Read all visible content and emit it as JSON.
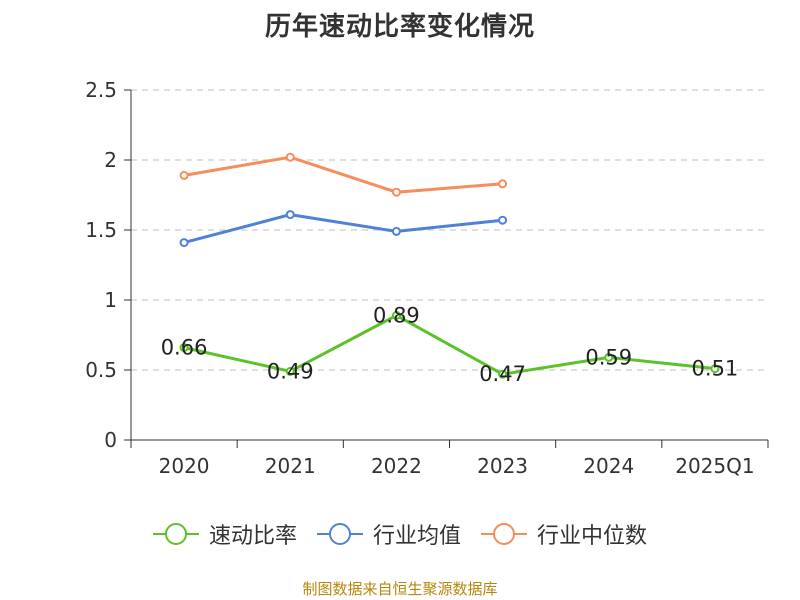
{
  "title": "历年速动比率变化情况",
  "source": "制图数据来自恒生聚源数据库",
  "chart_data": {
    "type": "line",
    "title": "历年速动比率变化情况",
    "categories": [
      "2020",
      "2021",
      "2022",
      "2023",
      "2024",
      "2025Q1"
    ],
    "ylim": [
      0,
      2.5
    ],
    "yticks": [
      "0",
      "0.5",
      "1",
      "1.5",
      "2",
      "2.5"
    ],
    "grid": true,
    "legend_position": "bottom",
    "series": [
      {
        "name": "速动比率",
        "color": "#5cc12b",
        "values": [
          0.66,
          0.49,
          0.89,
          0.47,
          0.59,
          0.51
        ],
        "labels": [
          "0.66",
          "0.49",
          "0.89",
          "0.47",
          "0.59",
          "0.51"
        ]
      },
      {
        "name": "行业均值",
        "color": "#4f81d9",
        "values": [
          1.41,
          1.61,
          1.49,
          1.57,
          null,
          null
        ]
      },
      {
        "name": "行业中位数",
        "color": "#f68d5d",
        "values": [
          1.89,
          2.02,
          1.77,
          1.83,
          null,
          null
        ]
      }
    ]
  }
}
